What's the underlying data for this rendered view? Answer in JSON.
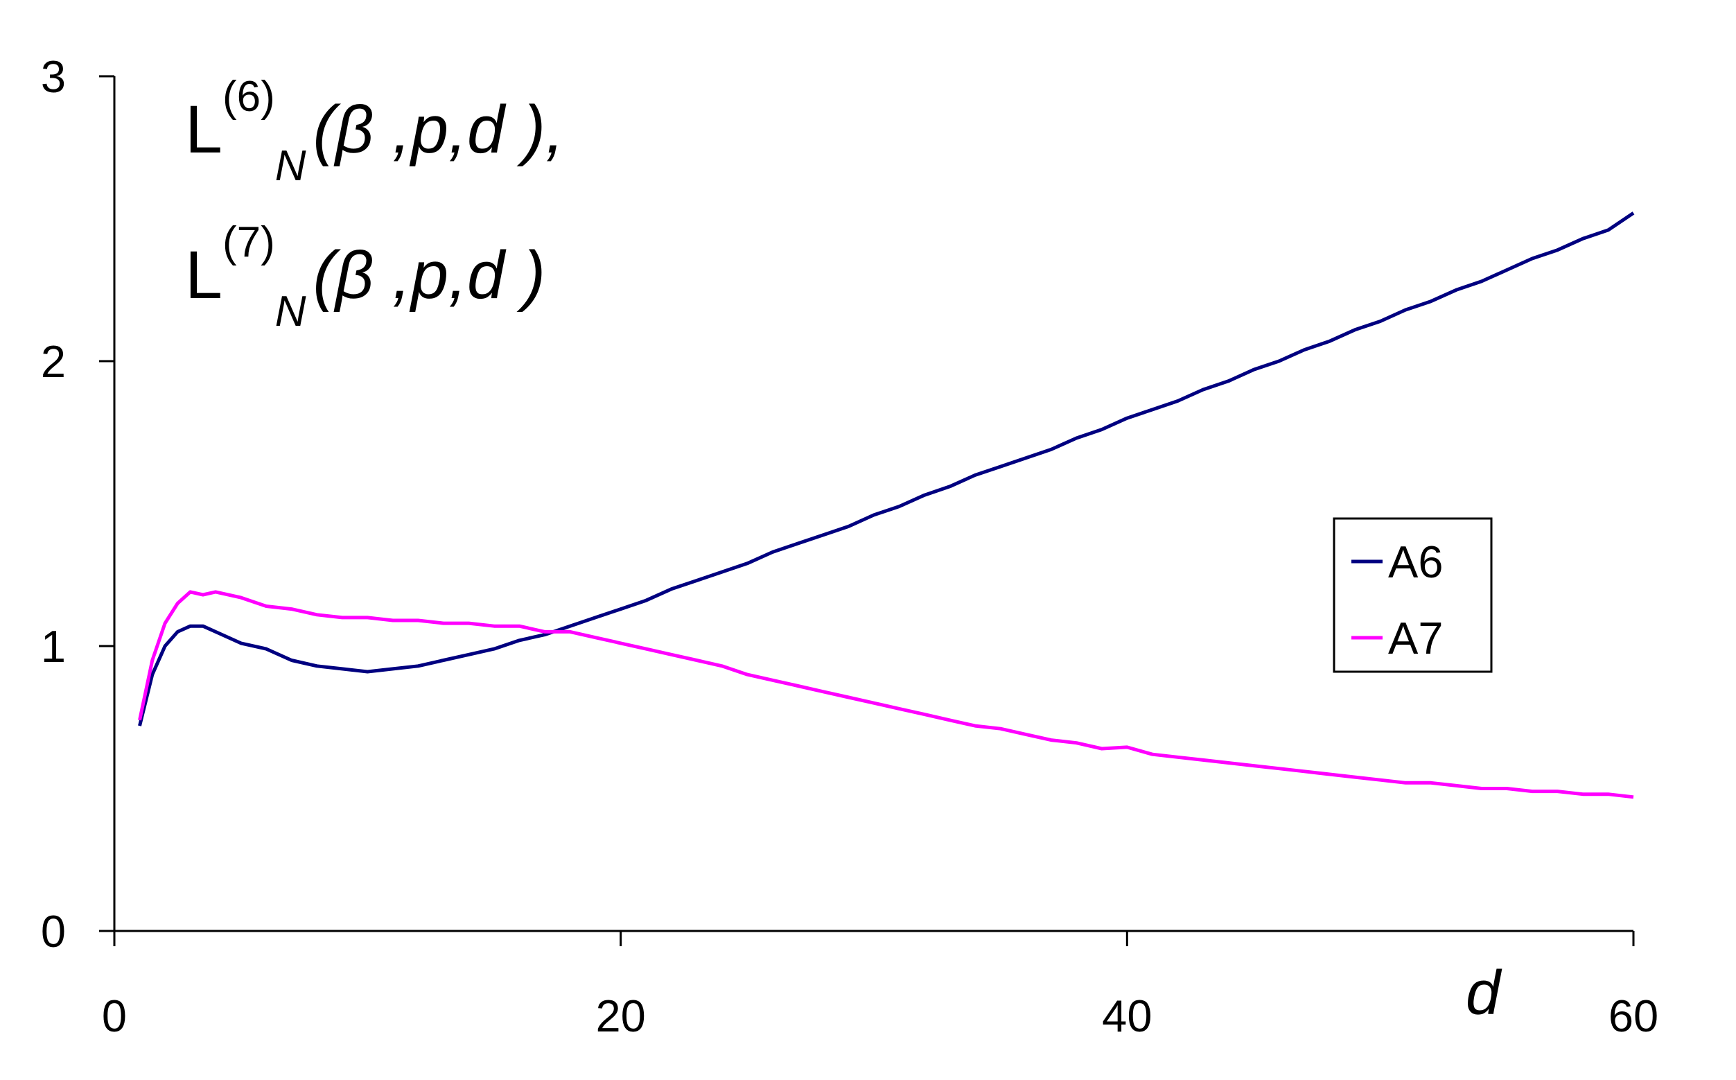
{
  "chart_data": {
    "type": "line",
    "title_lines": [
      {
        "main": "L",
        "sup": "(6)",
        "sub": "N",
        "args": "(β ,p,d ),"
      },
      {
        "main": "L",
        "sup": "(7)",
        "sub": "N",
        "args": "(β ,p,d )"
      }
    ],
    "x_label": "d",
    "x": [
      1,
      1.5,
      2,
      2.5,
      3,
      3.5,
      4,
      5,
      6,
      7,
      8,
      9,
      10,
      11,
      12,
      13,
      14,
      15,
      16,
      17,
      18,
      19,
      20,
      21,
      22,
      23,
      24,
      25,
      26,
      27,
      28,
      29,
      30,
      31,
      32,
      33,
      34,
      35,
      36,
      37,
      38,
      39,
      40,
      41,
      42,
      43,
      44,
      45,
      46,
      47,
      48,
      49,
      50,
      51,
      52,
      53,
      54,
      55,
      56,
      57,
      58,
      59,
      60
    ],
    "series": [
      {
        "name": "A6",
        "color": "#000080",
        "values": [
          0.72,
          0.9,
          1.0,
          1.05,
          1.07,
          1.07,
          1.05,
          1.01,
          0.99,
          0.95,
          0.93,
          0.92,
          0.91,
          0.92,
          0.93,
          0.95,
          0.97,
          0.99,
          1.02,
          1.04,
          1.07,
          1.1,
          1.13,
          1.16,
          1.2,
          1.23,
          1.26,
          1.29,
          1.33,
          1.36,
          1.39,
          1.42,
          1.46,
          1.49,
          1.53,
          1.56,
          1.6,
          1.63,
          1.66,
          1.69,
          1.73,
          1.76,
          1.8,
          1.83,
          1.86,
          1.9,
          1.93,
          1.97,
          2.0,
          2.04,
          2.07,
          2.11,
          2.14,
          2.18,
          2.21,
          2.25,
          2.28,
          2.32,
          2.36,
          2.39,
          2.43,
          2.46,
          2.52
        ]
      },
      {
        "name": "A7",
        "color": "#ff00ff",
        "values": [
          0.74,
          0.95,
          1.08,
          1.15,
          1.19,
          1.18,
          1.19,
          1.17,
          1.14,
          1.13,
          1.11,
          1.1,
          1.1,
          1.09,
          1.09,
          1.08,
          1.08,
          1.07,
          1.07,
          1.05,
          1.05,
          1.03,
          1.01,
          0.99,
          0.97,
          0.95,
          0.93,
          0.9,
          0.88,
          0.86,
          0.84,
          0.82,
          0.8,
          0.78,
          0.76,
          0.74,
          0.72,
          0.71,
          0.69,
          0.67,
          0.66,
          0.64,
          0.645,
          0.62,
          0.61,
          0.6,
          0.59,
          0.58,
          0.57,
          0.56,
          0.55,
          0.54,
          0.53,
          0.52,
          0.52,
          0.51,
          0.5,
          0.5,
          0.49,
          0.49,
          0.48,
          0.48,
          0.47
        ]
      }
    ],
    "xlim": [
      0,
      60
    ],
    "xticks": [
      0,
      20,
      40,
      60
    ],
    "ylim": [
      0,
      3
    ],
    "yticks": [
      0,
      1,
      2,
      3
    ],
    "grid": false,
    "legend": "right"
  }
}
